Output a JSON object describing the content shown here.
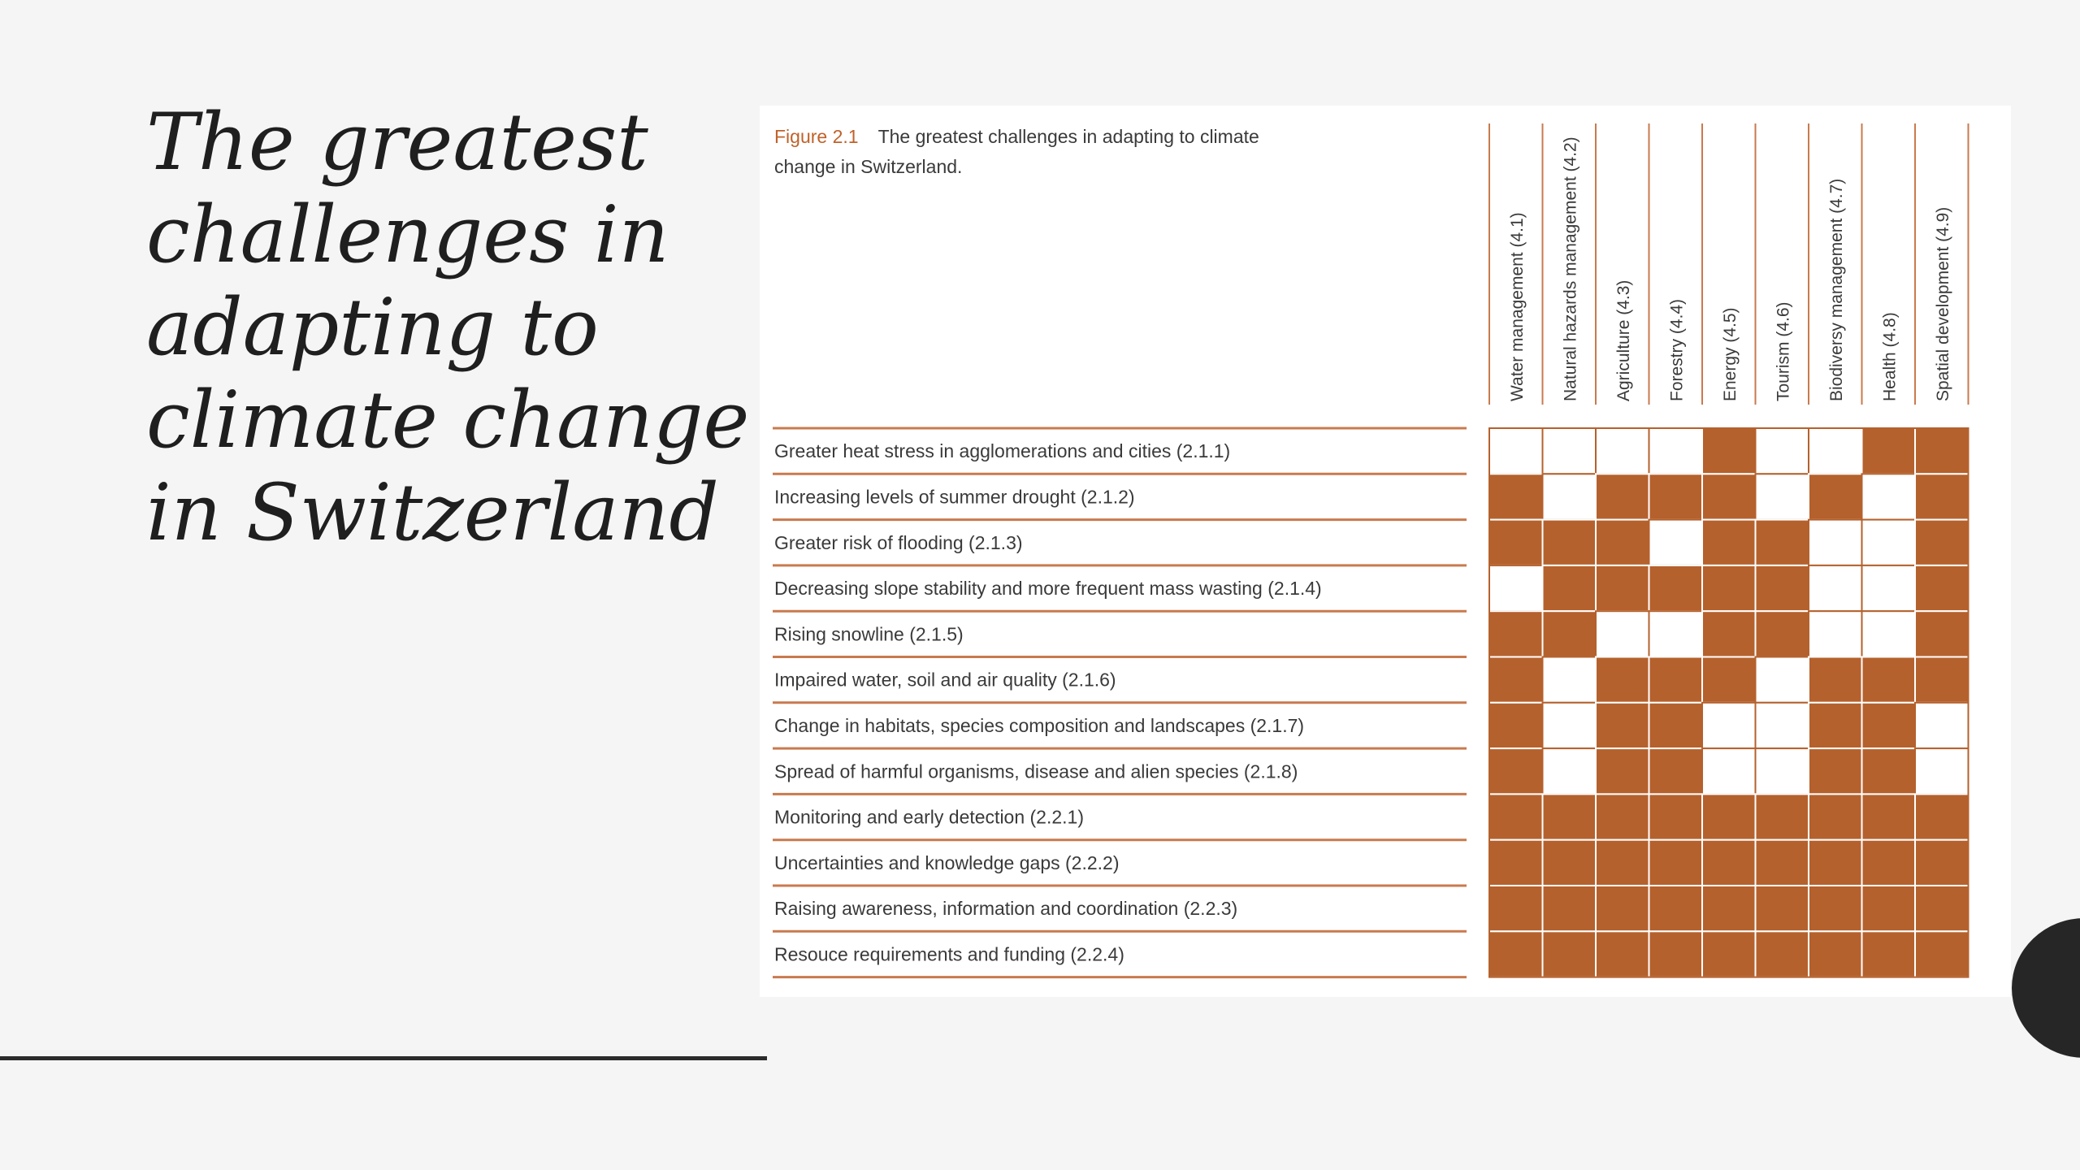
{
  "slide": {
    "title_lines": [
      "The greatest",
      "challenges in",
      "adapting to",
      "climate change",
      "in Switzerland"
    ]
  },
  "figure": {
    "number": "Figure 2.1",
    "caption_line1": "The greatest challenges in adapting to climate",
    "caption_line2": "change in Switzerland.",
    "colors": {
      "filled": "#b5612d",
      "empty": "#ffffff",
      "rule": "#c97a4e",
      "text": "#3a3a3a"
    },
    "columns": [
      "Water management (4.1)",
      "Natural hazards management (4.2)",
      "Agriculture (4.3)",
      "Forestry (4.4)",
      "Energy (4.5)",
      "Tourism (4.6)",
      "Biodiversy management (4.7)",
      "Health (4.8)",
      "Spatial development (4.9)"
    ],
    "rows": [
      {
        "label": "Greater heat stress in agglomerations and cities (2.1.1)",
        "cells": [
          0,
          0,
          0,
          0,
          1,
          0,
          0,
          1,
          1
        ]
      },
      {
        "label": "Increasing levels of summer drought (2.1.2)",
        "cells": [
          1,
          0,
          1,
          1,
          1,
          0,
          1,
          0,
          1
        ]
      },
      {
        "label": "Greater risk of flooding (2.1.3)",
        "cells": [
          1,
          1,
          1,
          0,
          1,
          1,
          0,
          0,
          1
        ]
      },
      {
        "label": "Decreasing slope stability and more frequent mass wasting (2.1.4)",
        "cells": [
          0,
          1,
          1,
          1,
          1,
          1,
          0,
          0,
          1
        ]
      },
      {
        "label": "Rising snowline (2.1.5)",
        "cells": [
          1,
          1,
          0,
          0,
          1,
          1,
          0,
          0,
          1
        ]
      },
      {
        "label": "Impaired water, soil and air quality (2.1.6)",
        "cells": [
          1,
          0,
          1,
          1,
          1,
          0,
          1,
          1,
          1
        ]
      },
      {
        "label": "Change in habitats, species composition and landscapes (2.1.7)",
        "cells": [
          1,
          0,
          1,
          1,
          0,
          0,
          1,
          1,
          0
        ]
      },
      {
        "label": "Spread of harmful organisms, disease and alien species (2.1.8)",
        "cells": [
          1,
          0,
          1,
          1,
          0,
          0,
          1,
          1,
          0
        ]
      },
      {
        "label": "Monitoring and early detection (2.2.1)",
        "cells": [
          1,
          1,
          1,
          1,
          1,
          1,
          1,
          1,
          1
        ]
      },
      {
        "label": "Uncertainties and knowledge gaps (2.2.2)",
        "cells": [
          1,
          1,
          1,
          1,
          1,
          1,
          1,
          1,
          1
        ]
      },
      {
        "label": "Raising awareness, information and coordination (2.2.3)",
        "cells": [
          1,
          1,
          1,
          1,
          1,
          1,
          1,
          1,
          1
        ]
      },
      {
        "label": "Resouce requirements and funding (2.2.4)",
        "cells": [
          1,
          1,
          1,
          1,
          1,
          1,
          1,
          1,
          1
        ]
      }
    ]
  }
}
